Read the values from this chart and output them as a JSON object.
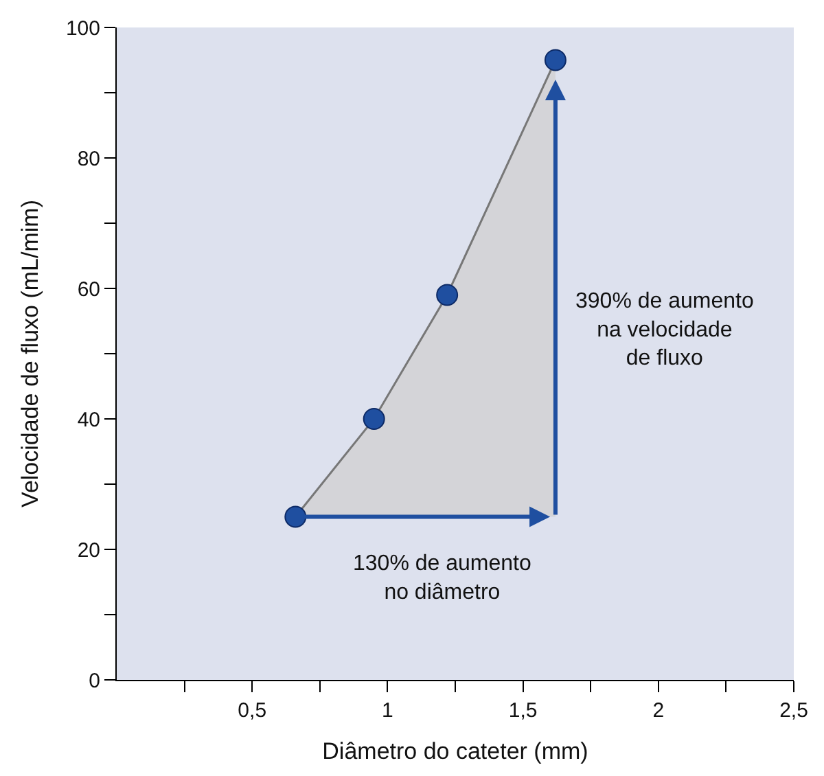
{
  "chart_data": {
    "type": "line",
    "xlabel": "Diâmetro do cateter (mm)",
    "ylabel": "Velocidade de fluxo (mL/mim)",
    "x": [
      0.66,
      0.95,
      1.22,
      1.62
    ],
    "series": [
      {
        "color": "#777777",
        "values": [
          25,
          40,
          59,
          95
        ]
      }
    ],
    "marker": "circle",
    "xlim": [
      0,
      2.5
    ],
    "ylim": [
      0,
      100
    ],
    "xticks": [
      {
        "value": 0.25,
        "label": null
      },
      {
        "value": 0.5,
        "label": "0,5"
      },
      {
        "value": 0.75,
        "label": null
      },
      1,
      {
        "value": 1.25,
        "label": null
      },
      {
        "value": 1.5,
        "label": "1,5"
      },
      {
        "value": 1.75,
        "label": null
      },
      2,
      {
        "value": 2.25,
        "label": null
      },
      {
        "value": 2.5,
        "label": "2,5"
      }
    ],
    "yticks": [
      0,
      {
        "value": 10,
        "label": null
      },
      20,
      {
        "value": 30,
        "label": null
      },
      40,
      {
        "value": 50,
        "label": null
      },
      60,
      {
        "value": 70,
        "label": null
      },
      80,
      {
        "value": 90,
        "label": null
      },
      100
    ],
    "annotations": [
      "390% de aumento\nna velocidade\nde fluxo",
      "130% de aumento\nno diâmetro"
    ],
    "grid": false
  }
}
